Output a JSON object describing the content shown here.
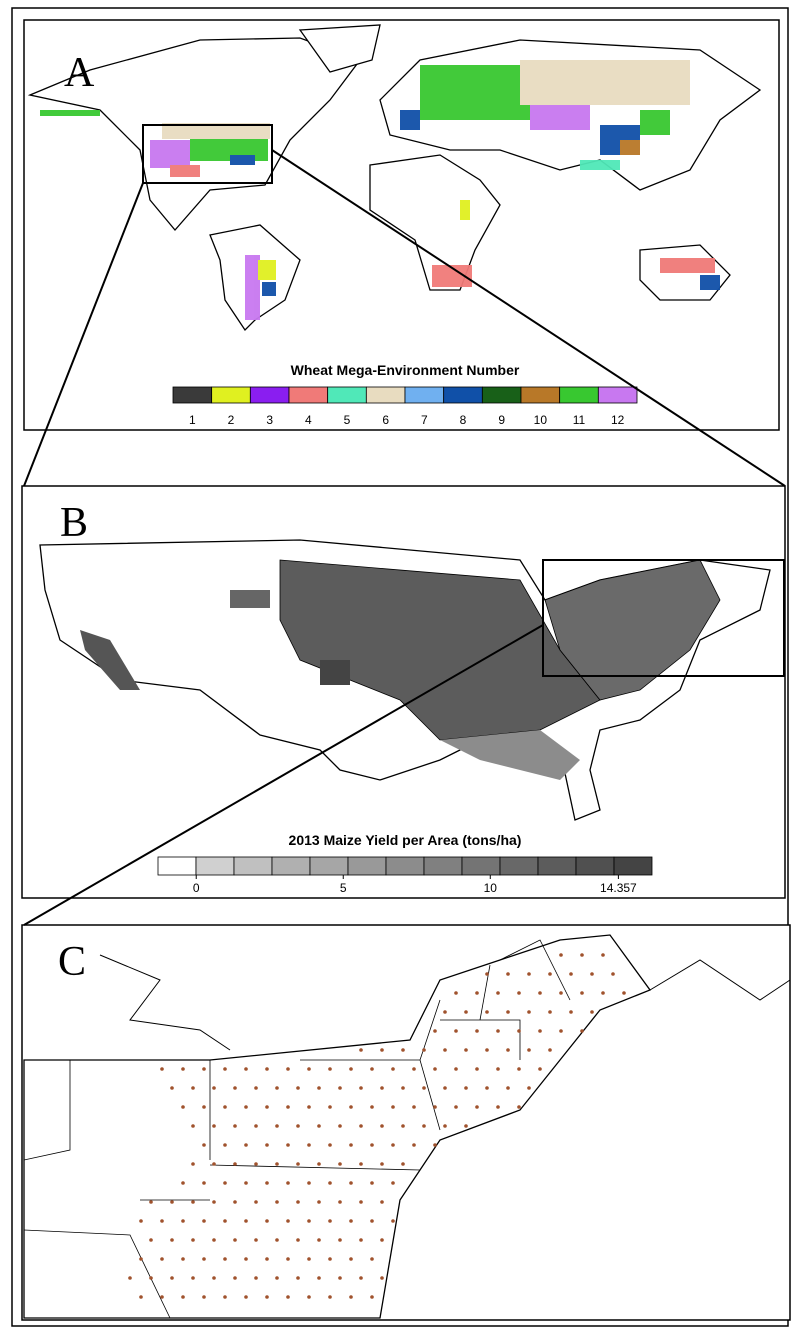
{
  "panels": [
    {
      "label": "A",
      "legend": {
        "title": "Wheat Mega-Environment Number",
        "items": [
          {
            "label": "1",
            "color": "#3a3a3a"
          },
          {
            "label": "2",
            "color": "#e0f020"
          },
          {
            "label": "3",
            "color": "#8a1ef0"
          },
          {
            "label": "4",
            "color": "#f07a78"
          },
          {
            "label": "5",
            "color": "#50e8b8"
          },
          {
            "label": "6",
            "color": "#e8dcc0"
          },
          {
            "label": "7",
            "color": "#70b0f0"
          },
          {
            "label": "8",
            "color": "#1050a8"
          },
          {
            "label": "9",
            "color": "#186018"
          },
          {
            "label": "10",
            "color": "#b87828"
          },
          {
            "label": "11",
            "color": "#38c830"
          },
          {
            "label": "12",
            "color": "#c878f0"
          }
        ]
      }
    },
    {
      "label": "B",
      "legend": {
        "title": "2013 Maize Yield per Area (tons/ha)",
        "colors": [
          "#ffffff",
          "#d0d0d0",
          "#c0c0c0",
          "#b0b0b0",
          "#a6a6a6",
          "#999999",
          "#8c8c8c",
          "#808080",
          "#747474",
          "#686868",
          "#5c5c5c",
          "#505050",
          "#444444"
        ],
        "range": [
          -1.3,
          15.5
        ],
        "ticks": [
          0,
          5,
          10,
          14.357
        ]
      }
    },
    {
      "label": "C"
    }
  ]
}
